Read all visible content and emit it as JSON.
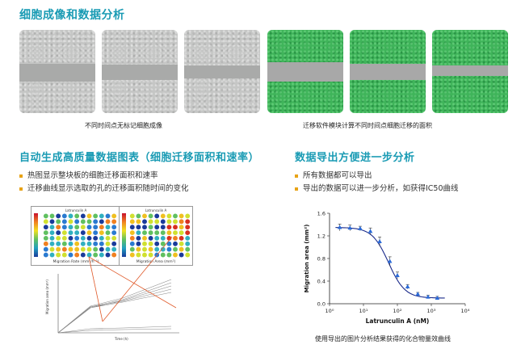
{
  "section1": {
    "title": "细胞成像和数据分析",
    "caption_left": "不同时间点无标记细胞成像",
    "caption_right": "迁移软件模块计算不同时间点细胞迁移的面积"
  },
  "section2": {
    "title": "自动生成高质量数据图表（细胞迁移面积和速率）",
    "bullets": [
      "热图显示整块板的细胞迁移面积和速率",
      "迁移曲线显示选取的孔的迁移面积随时间的变化"
    ],
    "heatmap_left": {
      "title": "Latrunculin A",
      "xlabel": "Migration Rate (mm²/h⁻¹)"
    },
    "heatmap_right": {
      "title": "Latrunculin A",
      "xlabel": "Migration Area (mm²)"
    },
    "line_chart": {
      "ylabel": "Migration area (mm²)",
      "xlabel": "Time (h)"
    }
  },
  "section3": {
    "title": "数据导出方便进一步分析",
    "bullets": [
      "所有数据都可以导出",
      "导出的数据可以进一步分析，如获得IC50曲线"
    ],
    "caption": "使用导出的图片分析结果获得的化合物量效曲线"
  },
  "colors": {
    "heading": "#1a9bb4",
    "bullet": "#e8a317",
    "curve": "#1a2a8a",
    "marker": "#2a6ad8"
  },
  "chart_data": {
    "type": "scatter",
    "title": "",
    "xlabel": "Latrunculin A (nM)",
    "ylabel": "Migration area (mm²)",
    "xscale": "log",
    "xlim": [
      1,
      10000
    ],
    "ylim": [
      0.0,
      1.6
    ],
    "x_ticks": [
      "10⁰",
      "10¹",
      "10²",
      "10³",
      "10⁴"
    ],
    "y_ticks": [
      "0.0",
      "0.2",
      "0.4",
      "0.6",
      "0.8",
      "1.0",
      "1.2",
      "1.4",
      "1.6"
    ],
    "series": [
      {
        "x": [
          2,
          4,
          8,
          16,
          30,
          60,
          100,
          200,
          400,
          800,
          1500
        ],
        "y": [
          1.35,
          1.34,
          1.33,
          1.28,
          1.1,
          0.75,
          0.5,
          0.3,
          0.17,
          0.12,
          0.1
        ],
        "err": [
          0.06,
          0.05,
          0.04,
          0.06,
          0.08,
          0.08,
          0.06,
          0.04,
          0.03,
          0.03,
          0.03
        ]
      }
    ],
    "fit": {
      "top": 1.35,
      "bottom": 0.1,
      "ic50": 55,
      "hill": 1.8
    }
  }
}
